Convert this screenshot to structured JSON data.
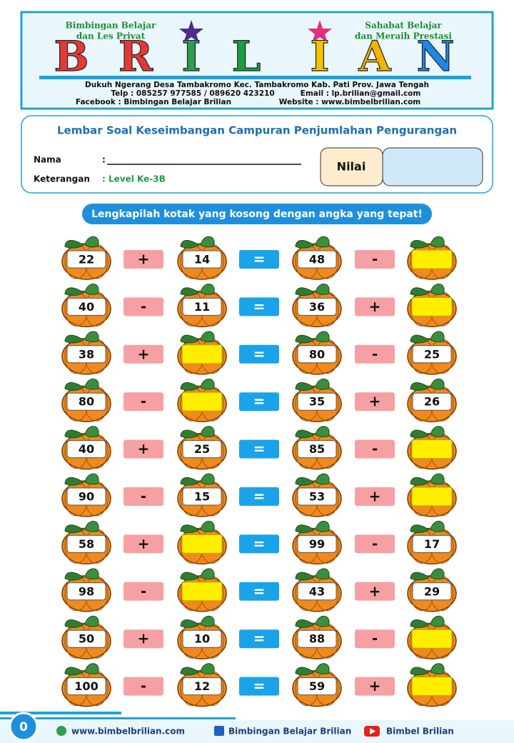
{
  "header": {
    "left_line1": "Bimbingan Belajar",
    "left_line2": "dan Les Privat",
    "right_line1": "Sahabat Belajar",
    "right_line2": "dan Meraih Prestasi",
    "logo_letters": [
      "B",
      "R",
      "I",
      "L",
      "I",
      "A",
      "N"
    ],
    "address": "Dukuh Ngerang Desa Tambakromo Kec. Tambakromo Kab. Pati Prov. Jawa Tengah",
    "phone": "Telp : 085257 977585 / 089620 423210",
    "email": "Email : lp.brilian@gmail.com",
    "facebook": "Facebook : Bimbingan Belajar Brilian",
    "website": "Website : www.bimbelbrilian.com"
  },
  "info": {
    "title": "Lembar Soal Keseimbangan Campuran Penjumlahan Pengurangan",
    "name_label": "Nama",
    "name_colon": ":",
    "note_label": "Keterangan",
    "note_value": ": Level Ke-3B",
    "score_label": "Nilai"
  },
  "instruction": "Lengkapilah kotak yang kosong dengan angka yang tepat!",
  "rows": [
    [
      22,
      "+",
      14,
      "=",
      48,
      "-",
      null
    ],
    [
      40,
      "-",
      11,
      "=",
      36,
      "+",
      null
    ],
    [
      38,
      "+",
      null,
      "=",
      80,
      "-",
      25
    ],
    [
      80,
      "-",
      null,
      "=",
      35,
      "+",
      26
    ],
    [
      40,
      "+",
      25,
      "=",
      85,
      "-",
      null
    ],
    [
      90,
      "-",
      15,
      "=",
      53,
      "+",
      null
    ],
    [
      58,
      "+",
      null,
      "=",
      99,
      "-",
      17
    ],
    [
      98,
      "-",
      null,
      "=",
      43,
      "+",
      29
    ],
    [
      50,
      "+",
      10,
      "=",
      88,
      "-",
      null
    ],
    [
      100,
      "-",
      12,
      "=",
      59,
      "+",
      null
    ]
  ],
  "footer": {
    "page": "0",
    "website": "www.bimbelbrilian.com",
    "facebook": "Bimbingan Belajar Brilian",
    "youtube": "Bimbel Brilian"
  }
}
